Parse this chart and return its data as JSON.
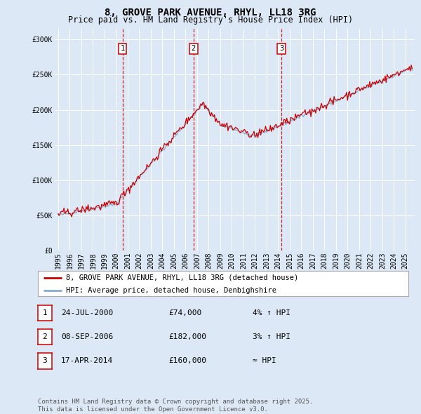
{
  "title": "8, GROVE PARK AVENUE, RHYL, LL18 3RG",
  "subtitle": "Price paid vs. HM Land Registry's House Price Index (HPI)",
  "ylabel_ticks": [
    "£0",
    "£50K",
    "£100K",
    "£150K",
    "£200K",
    "£250K",
    "£300K"
  ],
  "ytick_values": [
    0,
    50000,
    100000,
    150000,
    200000,
    250000,
    300000
  ],
  "ylim": [
    0,
    315000
  ],
  "xlim_start": 1994.7,
  "xlim_end": 2025.8,
  "background_color": "#dce8f5",
  "plot_bg_color": "#dce8f5",
  "red_line_color": "#cc0000",
  "blue_line_color": "#88aacc",
  "vline_color": "#cc0000",
  "sale_dates": [
    2000.56,
    2006.69,
    2014.29
  ],
  "sale_labels": [
    "1",
    "2",
    "3"
  ],
  "legend_items": [
    {
      "label": "8, GROVE PARK AVENUE, RHYL, LL18 3RG (detached house)",
      "color": "#cc0000"
    },
    {
      "label": "HPI: Average price, detached house, Denbighshire",
      "color": "#88aacc"
    }
  ],
  "transactions": [
    {
      "num": "1",
      "date": "24-JUL-2000",
      "price": "£74,000",
      "hpi": "4% ↑ HPI"
    },
    {
      "num": "2",
      "date": "08-SEP-2006",
      "price": "£182,000",
      "hpi": "3% ↑ HPI"
    },
    {
      "num": "3",
      "date": "17-APR-2014",
      "price": "£160,000",
      "hpi": "≈ HPI"
    }
  ],
  "footnote": "Contains HM Land Registry data © Crown copyright and database right 2025.\nThis data is licensed under the Open Government Licence v3.0.",
  "title_fontsize": 10,
  "subtitle_fontsize": 8.5,
  "tick_fontsize": 7,
  "legend_fontsize": 7.5,
  "table_fontsize": 8,
  "footnote_fontsize": 6.5
}
